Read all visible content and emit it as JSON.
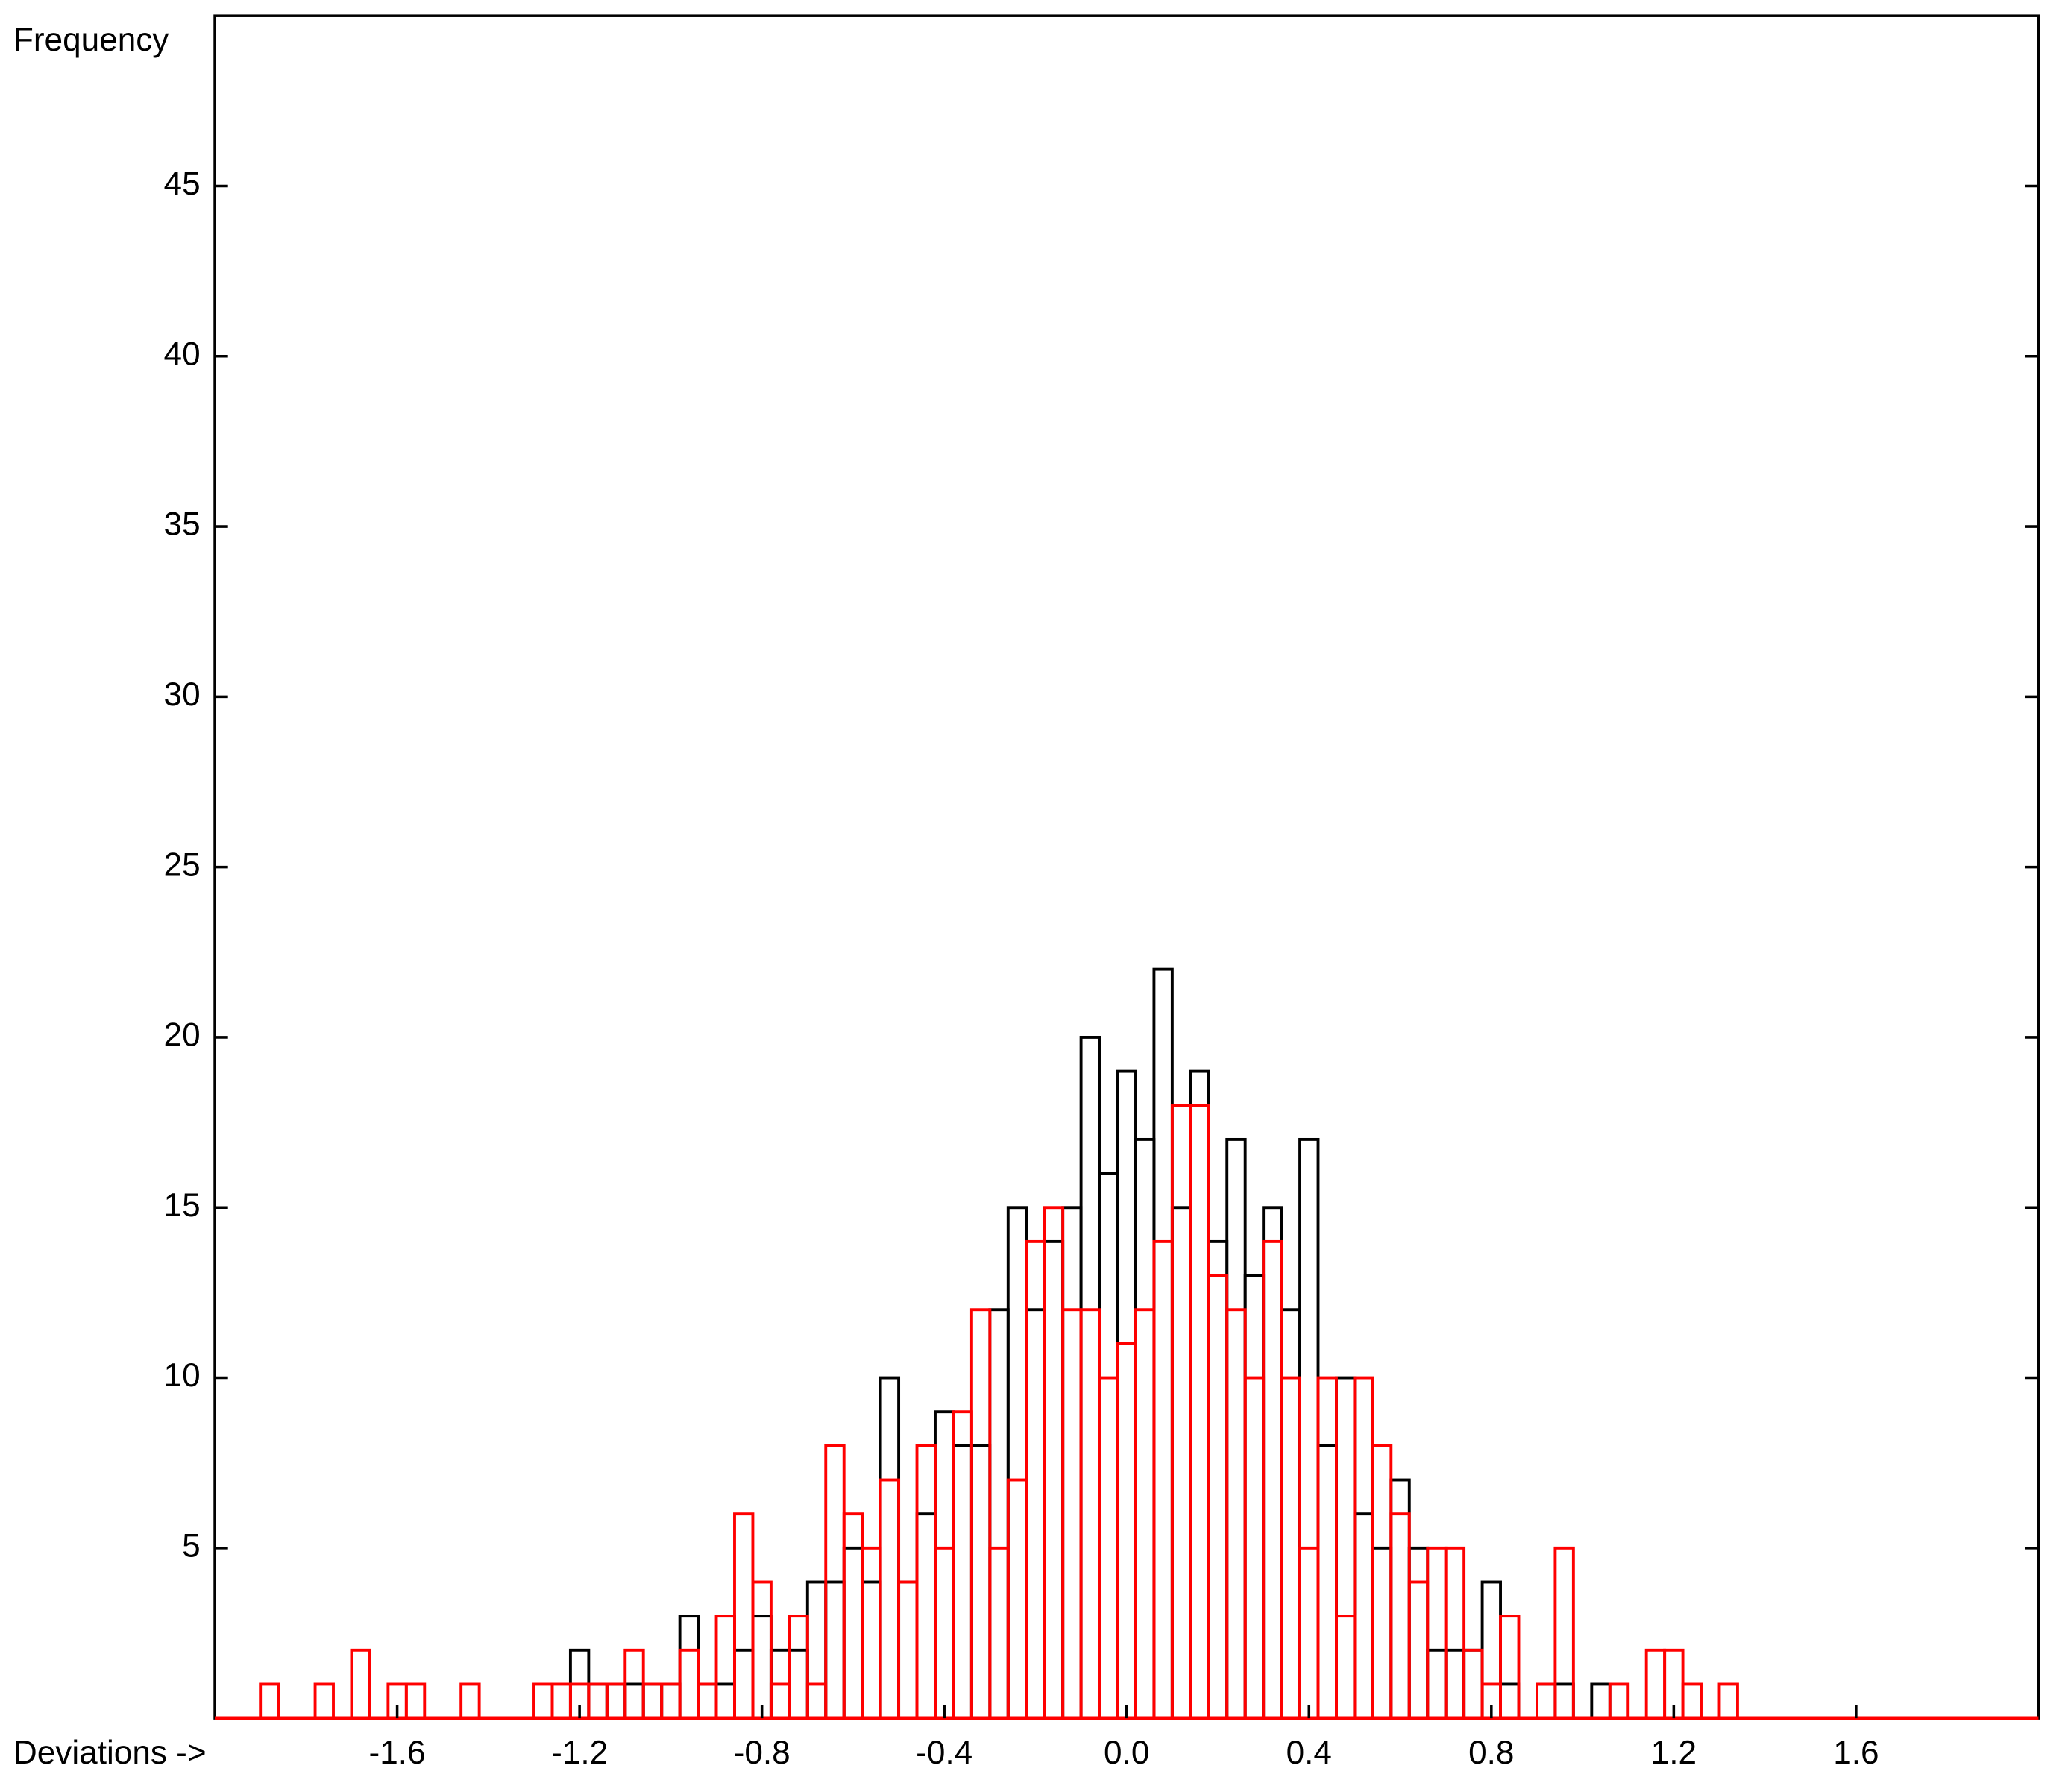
{
  "chart_data": {
    "type": "histogram",
    "x_label": "Deviations ->",
    "y_label": "Frequency",
    "bins": [
      -1.9,
      -1.86,
      -1.82,
      -1.78,
      -1.74,
      -1.7,
      -1.66,
      -1.62,
      -1.58,
      -1.54,
      -1.5,
      -1.46,
      -1.42,
      -1.38,
      -1.34,
      -1.3,
      -1.26,
      -1.22,
      -1.18,
      -1.14,
      -1.1,
      -1.06,
      -1.02,
      -0.98,
      -0.94,
      -0.9,
      -0.86,
      -0.82,
      -0.78,
      -0.74,
      -0.7,
      -0.66,
      -0.62,
      -0.58,
      -0.54,
      -0.5,
      -0.46,
      -0.42,
      -0.38,
      -0.34,
      -0.3,
      -0.26,
      -0.22,
      -0.18,
      -0.14,
      -0.1,
      -0.06,
      -0.02,
      0.02,
      0.06,
      0.1,
      0.14,
      0.18,
      0.22,
      0.26,
      0.3,
      0.34,
      0.38,
      0.42,
      0.46,
      0.5,
      0.54,
      0.58,
      0.62,
      0.66,
      0.7,
      0.74,
      0.78,
      0.82,
      0.86,
      0.9,
      0.94,
      0.98,
      1.02,
      1.06,
      1.1,
      1.14,
      1.18,
      1.22,
      1.26,
      1.3,
      1.34
    ],
    "series": [
      {
        "color": "#000000",
        "values": [
          0,
          0,
          0,
          0,
          0,
          0,
          0,
          0,
          0,
          0,
          0,
          0,
          0,
          0,
          0,
          0,
          0,
          2,
          1,
          1,
          1,
          1,
          1,
          3,
          1,
          1,
          2,
          3,
          2,
          2,
          4,
          4,
          5,
          4,
          10,
          4,
          6,
          9,
          8,
          8,
          12,
          15,
          12,
          14,
          15,
          20,
          16,
          19,
          17,
          22,
          15,
          19,
          14,
          17,
          13,
          15,
          12,
          17,
          8,
          10,
          6,
          5,
          7,
          5,
          2,
          2,
          2,
          4,
          1,
          0,
          1,
          1,
          0,
          1,
          0,
          0,
          0,
          0,
          0,
          0,
          0
        ]
      },
      {
        "color": "#ff0000",
        "values": [
          1,
          0,
          0,
          1,
          0,
          2,
          0,
          1,
          1,
          0,
          0,
          1,
          0,
          0,
          0,
          1,
          1,
          1,
          1,
          1,
          2,
          1,
          1,
          2,
          1,
          3,
          6,
          4,
          1,
          3,
          1,
          8,
          6,
          5,
          7,
          4,
          8,
          5,
          9,
          12,
          5,
          7,
          14,
          15,
          12,
          12,
          10,
          11,
          12,
          14,
          18,
          18,
          13,
          12,
          10,
          14,
          10,
          5,
          10,
          3,
          10,
          8,
          6,
          4,
          5,
          5,
          2,
          1,
          3,
          0,
          1,
          5,
          0,
          0,
          1,
          0,
          2,
          2,
          1,
          0,
          1
        ]
      }
    ],
    "xlim": [
      -2,
      2
    ],
    "ylim": [
      0,
      50
    ],
    "xticks": [
      -1.6,
      -1.2,
      -0.8,
      -0.4,
      {
        "value": 0,
        "label": "0.0"
      },
      0.4,
      0.8,
      1.2,
      1.6
    ],
    "yticks": [
      5,
      10,
      15,
      20,
      25,
      30,
      35,
      40,
      45
    ]
  }
}
